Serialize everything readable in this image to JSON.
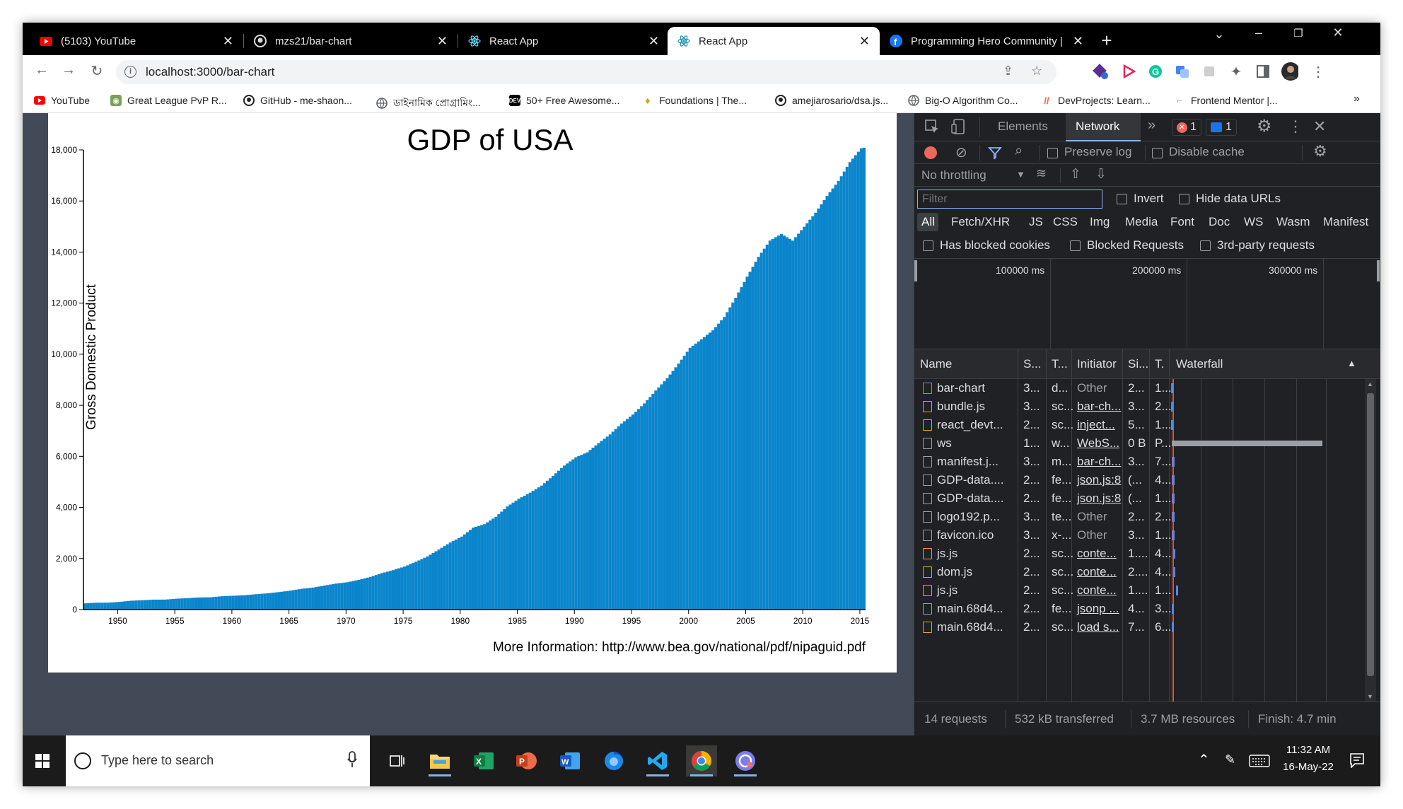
{
  "browser": {
    "tabs": [
      {
        "title": "(5103) YouTube",
        "icon": "youtube-icon",
        "active": false
      },
      {
        "title": "mzs21/bar-chart",
        "icon": "github-icon",
        "active": false
      },
      {
        "title": "React App",
        "icon": "react-icon",
        "active": false
      },
      {
        "title": "React App",
        "icon": "react-icon",
        "active": true
      },
      {
        "title": "Programming Hero Community |",
        "icon": "facebook-icon",
        "active": false
      }
    ],
    "url": "localhost:3000/bar-chart",
    "bookmarks": [
      {
        "label": "YouTube",
        "icon": "youtube-icon"
      },
      {
        "label": "Great League PvP R...",
        "icon": "pvp-icon"
      },
      {
        "label": "GitHub - me-shaon...",
        "icon": "github-icon"
      },
      {
        "label": "ডাইনামিক প্রোগ্রামিং...",
        "icon": "globe-icon"
      },
      {
        "label": "50+ Free Awesome...",
        "icon": "dev-icon"
      },
      {
        "label": "Foundations | The...",
        "icon": "odin-icon"
      },
      {
        "label": "amejiarosario/dsa.js...",
        "icon": "github-icon"
      },
      {
        "label": "Big-O Algorithm Co...",
        "icon": "globe-icon"
      },
      {
        "label": "DevProjects: Learn...",
        "icon": "devprojects-icon"
      },
      {
        "label": "Frontend Mentor |...",
        "icon": "frontend-mentor-icon"
      }
    ]
  },
  "chart_data": {
    "type": "bar",
    "title": "GDP of USA",
    "ylabel": "Gross Domestic Product",
    "xlabel": "",
    "note": "More Information: http://www.bea.gov/national/pdf/nipaguid.pdf",
    "xlim": [
      1947,
      2015.5
    ],
    "ylim": [
      0,
      18000
    ],
    "x_ticks": [
      "1950",
      "1955",
      "1960",
      "1965",
      "1970",
      "1975",
      "1980",
      "1985",
      "1990",
      "1995",
      "2000",
      "2005",
      "2010",
      "2015"
    ],
    "y_ticks": [
      "0",
      "2,000",
      "4,000",
      "6,000",
      "8,000",
      "10,000",
      "12,000",
      "14,000",
      "16,000",
      "18,000"
    ],
    "color": "#0a85cc",
    "series_year_values": [
      [
        1947,
        243
      ],
      [
        1948,
        270
      ],
      [
        1949,
        272
      ],
      [
        1950,
        299
      ],
      [
        1951,
        346
      ],
      [
        1952,
        367
      ],
      [
        1953,
        389
      ],
      [
        1954,
        391
      ],
      [
        1955,
        425
      ],
      [
        1956,
        449
      ],
      [
        1957,
        474
      ],
      [
        1958,
        482
      ],
      [
        1959,
        522
      ],
      [
        1960,
        543
      ],
      [
        1961,
        562
      ],
      [
        1962,
        603
      ],
      [
        1963,
        637
      ],
      [
        1964,
        685
      ],
      [
        1965,
        743
      ],
      [
        1966,
        815
      ],
      [
        1967,
        862
      ],
      [
        1968,
        942
      ],
      [
        1969,
        1019
      ],
      [
        1970,
        1073
      ],
      [
        1971,
        1165
      ],
      [
        1972,
        1279
      ],
      [
        1973,
        1425
      ],
      [
        1974,
        1545
      ],
      [
        1975,
        1685
      ],
      [
        1976,
        1873
      ],
      [
        1977,
        2081
      ],
      [
        1978,
        2351
      ],
      [
        1979,
        2627
      ],
      [
        1980,
        2857
      ],
      [
        1981,
        3207
      ],
      [
        1982,
        3344
      ],
      [
        1983,
        3634
      ],
      [
        1984,
        4037
      ],
      [
        1985,
        4339
      ],
      [
        1986,
        4579
      ],
      [
        1987,
        4855
      ],
      [
        1988,
        5236
      ],
      [
        1989,
        5641
      ],
      [
        1990,
        5963
      ],
      [
        1991,
        6158
      ],
      [
        1992,
        6520
      ],
      [
        1993,
        6858
      ],
      [
        1994,
        7287
      ],
      [
        1995,
        7639
      ],
      [
        1996,
        8073
      ],
      [
        1997,
        8577
      ],
      [
        1998,
        9062
      ],
      [
        1999,
        9631
      ],
      [
        2000,
        10251
      ],
      [
        2001,
        10581
      ],
      [
        2002,
        10936
      ],
      [
        2003,
        11458
      ],
      [
        2004,
        12213
      ],
      [
        2005,
        13036
      ],
      [
        2006,
        13814
      ],
      [
        2007,
        14451
      ],
      [
        2008,
        14712
      ],
      [
        2009,
        14448
      ],
      [
        2010,
        14992
      ],
      [
        2011,
        15542
      ],
      [
        2012,
        16197
      ],
      [
        2013,
        16784
      ],
      [
        2014,
        17522
      ],
      [
        2015,
        18064
      ]
    ]
  },
  "devtools": {
    "tabs": [
      "Elements",
      "Network"
    ],
    "active_tab": "Network",
    "error_count": "1",
    "message_count": "1",
    "preserve_log": "Preserve log",
    "disable_cache": "Disable cache",
    "throttling": "No throttling",
    "filter_placeholder": "Filter",
    "invert": "Invert",
    "hide_data_urls": "Hide data URLs",
    "type_filters": [
      "All",
      "Fetch/XHR",
      "JS",
      "CSS",
      "Img",
      "Media",
      "Font",
      "Doc",
      "WS",
      "Wasm",
      "Manifest"
    ],
    "has_blocked_cookies": "Has blocked cookies",
    "blocked_requests": "Blocked Requests",
    "third_party": "3rd-party requests",
    "timeline_ticks": [
      "100000 ms",
      "200000 ms",
      "300000 ms"
    ],
    "columns": [
      "Name",
      "S...",
      "T...",
      "Initiator",
      "Si...",
      "T.",
      "Waterfall"
    ],
    "rows": [
      {
        "name": "bar-chart",
        "status": "3...",
        "type": "d...",
        "initiator": "Other",
        "size": "2...",
        "time": "1...",
        "icon": "doc",
        "link": false
      },
      {
        "name": "bundle.js",
        "status": "3...",
        "type": "sc...",
        "initiator": "bar-ch...",
        "size": "3...",
        "time": "2...",
        "icon": "js",
        "link": true
      },
      {
        "name": "react_devt...",
        "status": "2...",
        "type": "sc...",
        "initiator": "inject...",
        "size": "5...",
        "time": "1...",
        "icon": "js",
        "link": true
      },
      {
        "name": "ws",
        "status": "1...",
        "type": "w...",
        "initiator": "WebS...",
        "size": "0 B",
        "time": "P...",
        "icon": "plain",
        "link": true
      },
      {
        "name": "manifest.j...",
        "status": "3...",
        "type": "m...",
        "initiator": "bar-ch...",
        "size": "3...",
        "time": "7...",
        "icon": "plain",
        "link": true
      },
      {
        "name": "GDP-data....",
        "status": "2...",
        "type": "fe...",
        "initiator": "json.js:8",
        "size": "(...",
        "time": "4...",
        "icon": "plain",
        "link": true
      },
      {
        "name": "GDP-data....",
        "status": "2...",
        "type": "fe...",
        "initiator": "json.js:8",
        "size": "(...",
        "time": "1...",
        "icon": "plain",
        "link": true
      },
      {
        "name": "logo192.p...",
        "status": "3...",
        "type": "te...",
        "initiator": "Other",
        "size": "2...",
        "time": "2...",
        "icon": "plain",
        "link": false
      },
      {
        "name": "favicon.ico",
        "status": "3...",
        "type": "x-...",
        "initiator": "Other",
        "size": "3...",
        "time": "1...",
        "icon": "plain",
        "link": false
      },
      {
        "name": "js.js",
        "status": "2...",
        "type": "sc...",
        "initiator": "conte...",
        "size": "1....",
        "time": "4...",
        "icon": "js",
        "link": true
      },
      {
        "name": "dom.js",
        "status": "2...",
        "type": "sc...",
        "initiator": "conte...",
        "size": "2....",
        "time": "4...",
        "icon": "js",
        "link": true
      },
      {
        "name": "js.js",
        "status": "2...",
        "type": "sc...",
        "initiator": "conte...",
        "size": "1....",
        "time": "1...",
        "icon": "js",
        "link": true
      },
      {
        "name": "main.68d4...",
        "status": "2...",
        "type": "fe...",
        "initiator": "jsonp ...",
        "size": "4...",
        "time": "3...",
        "icon": "plain",
        "link": true
      },
      {
        "name": "main.68d4...",
        "status": "2...",
        "type": "sc...",
        "initiator": "load s...",
        "size": "7...",
        "time": "6...",
        "icon": "js",
        "link": true
      }
    ],
    "status_bar": {
      "requests": "14 requests",
      "transferred": "532 kB transferred",
      "resources": "3.7 MB resources",
      "finish": "Finish: 4.7 min"
    }
  },
  "taskbar": {
    "search_placeholder": "Type here to search",
    "apps": [
      "file-explorer-icon",
      "excel-icon",
      "powerpoint-icon",
      "word-icon",
      "firefox-icon",
      "vscode-icon",
      "chrome-icon",
      "discord-icon"
    ],
    "time": "11:32 AM",
    "date": "16-May-22"
  }
}
